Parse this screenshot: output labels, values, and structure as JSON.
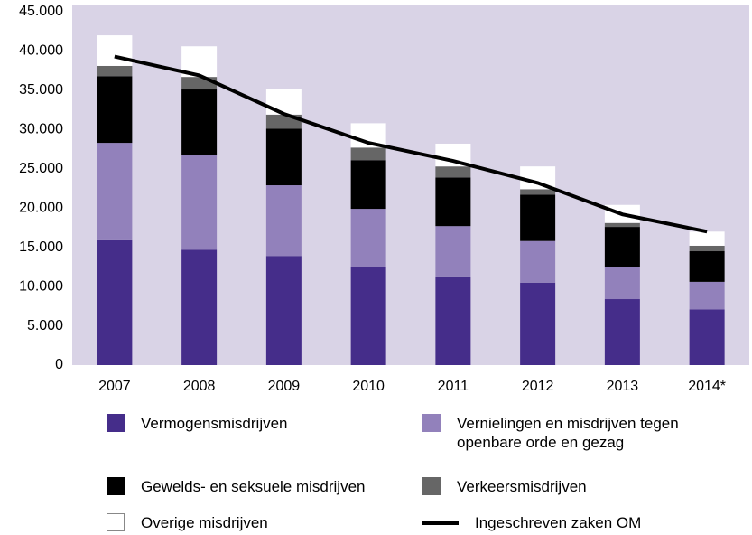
{
  "chart_data": {
    "type": "stacked-bar-line",
    "categories": [
      "2007",
      "2008",
      "2009",
      "2010",
      "2011",
      "2012",
      "2013",
      "2014*"
    ],
    "series": [
      {
        "name": "Vermogensmisdrijven",
        "color": "#452d8a",
        "values": [
          15900,
          14700,
          13900,
          12500,
          11300,
          10500,
          8400,
          7100
        ]
      },
      {
        "name": "Vernielingen en misdrijven tegen openbare orde en gezag",
        "color": "#9281bb",
        "values": [
          12400,
          12000,
          9000,
          7400,
          6400,
          5300,
          4100,
          3500
        ]
      },
      {
        "name": "Gewelds- en seksuele misdrijven",
        "color": "#000000",
        "values": [
          8500,
          8400,
          7200,
          6200,
          6200,
          5900,
          5100,
          3900
        ]
      },
      {
        "name": "Verkeersmisdrijven",
        "color": "#666666",
        "values": [
          1300,
          1600,
          1800,
          1600,
          1400,
          700,
          500,
          700
        ]
      },
      {
        "name": "Overige misdrijven",
        "color": "#ffffff",
        "values": [
          3900,
          3900,
          3300,
          3100,
          2900,
          2900,
          2300,
          1800
        ]
      },
      {
        "name": "Ingeschreven zaken OM",
        "color": "#000000",
        "type": "line",
        "values": [
          39300,
          36900,
          32000,
          28300,
          26000,
          23200,
          19200,
          17000
        ]
      }
    ],
    "ylim": [
      0,
      45000
    ],
    "yticks": [
      0,
      {
        "value": 5000,
        "label": "5.000"
      },
      {
        "value": 10000,
        "label": "10.000"
      },
      {
        "value": 15000,
        "label": "15.000"
      },
      {
        "value": 20000,
        "label": "20.000"
      },
      {
        "value": 25000,
        "label": "25.000"
      },
      {
        "value": 30000,
        "label": "30.000"
      },
      {
        "value": 35000,
        "label": "35.000"
      },
      {
        "value": 40000,
        "label": "40.000"
      },
      {
        "value": 45000,
        "label": "45.000"
      }
    ],
    "background": "#d9d3e6"
  }
}
